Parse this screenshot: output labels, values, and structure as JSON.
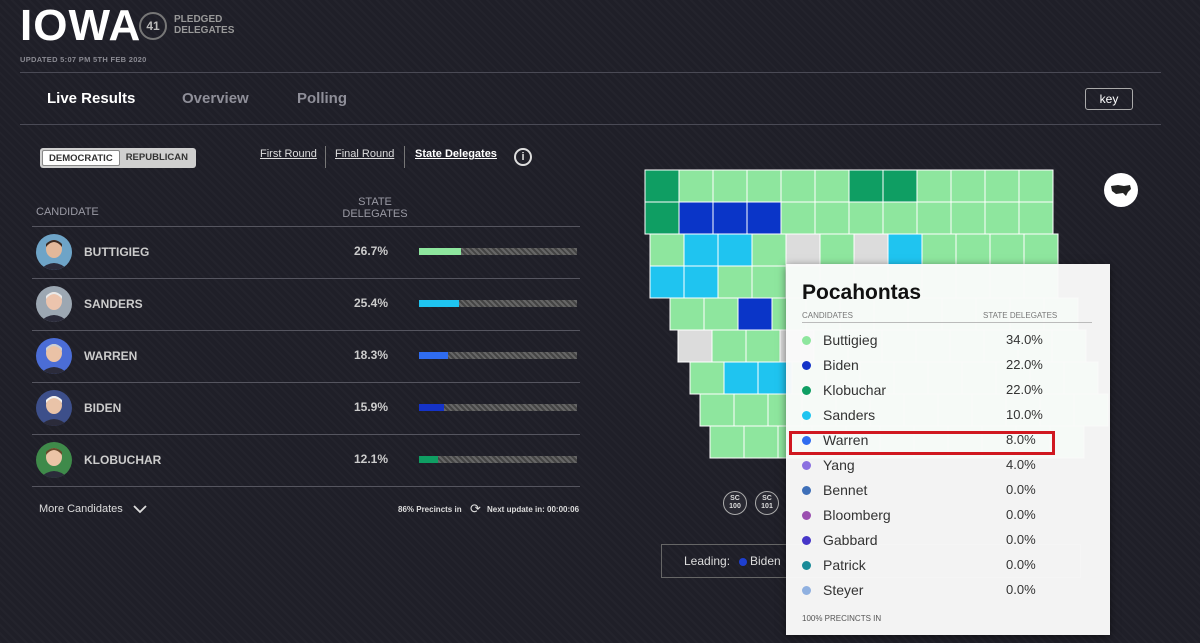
{
  "header": {
    "state": "IOWA",
    "delegates_count": "41",
    "delegates_label": "PLEDGED DELEGATES",
    "updated": "UPDATED 5:07 PM 5TH FEB 2020"
  },
  "nav": {
    "tabs": [
      "Live Results",
      "Overview",
      "Polling"
    ],
    "active": "Live Results",
    "key_label": "key"
  },
  "party_toggle": {
    "democratic": "DEMOCRATIC",
    "republican": "REPUBLICAN",
    "selected": "DEMOCRATIC"
  },
  "round_tabs": {
    "first": "First Round",
    "final": "Final Round",
    "state": "State Delegates"
  },
  "info_icon": "info-icon",
  "table": {
    "col_candidate": "CANDIDATE",
    "col_delegates": "STATE DELEGATES",
    "rows": [
      {
        "name": "BUTTIGIEG",
        "pct": "26.7%",
        "value": 0.267,
        "color": "#8ee69e",
        "avatar_bg": "#6ea4c7",
        "skin": "#e2b89a",
        "hair": "#3b2a22"
      },
      {
        "name": "SANDERS",
        "pct": "25.4%",
        "value": 0.254,
        "color": "#1fc4f0",
        "avatar_bg": "#9ca7b2",
        "skin": "#ecc4ad",
        "hair": "#e9e9e9"
      },
      {
        "name": "WARREN",
        "pct": "18.3%",
        "value": 0.183,
        "color": "#2f6cf0",
        "avatar_bg": "#4b6dd6",
        "skin": "#eac2a6",
        "hair": "#c9cfd6"
      },
      {
        "name": "BIDEN",
        "pct": "15.9%",
        "value": 0.159,
        "color": "#1533c8",
        "avatar_bg": "#3d4f8a",
        "skin": "#e9c3a8",
        "hair": "#f2f2f2"
      },
      {
        "name": "KLOBUCHAR",
        "pct": "12.1%",
        "value": 0.121,
        "color": "#0f9e63",
        "avatar_bg": "#3f8a4a",
        "skin": "#ebc4a6",
        "hair": "#6a4a2b"
      }
    ]
  },
  "footer": {
    "more": "More Candidates",
    "precincts": "86% Precincts in",
    "next_update": "Next update in: 00:00:06"
  },
  "map": {
    "us_icon": "us-map-icon",
    "badges": [
      {
        "line1": "SC",
        "line2": "100"
      },
      {
        "line1": "SC",
        "line2": "101"
      }
    ],
    "leading_label": "Leading:",
    "leading_name": "Biden",
    "colors": {
      "buttigieg": "#8ee69e",
      "biden": "#0a35c8",
      "klobuchar": "#0f9e63",
      "sanders": "#1fc4f0",
      "none": "#dcdcdc"
    }
  },
  "popup": {
    "county": "Pocahontas",
    "col_candidates": "CANDIDATES",
    "col_delegates": "STATE DELEGATES",
    "rows": [
      {
        "name": "Buttigieg",
        "pct": "34.0%",
        "color": "#8ee69e"
      },
      {
        "name": "Biden",
        "pct": "22.0%",
        "color": "#1533c8"
      },
      {
        "name": "Klobuchar",
        "pct": "22.0%",
        "color": "#0f9e63"
      },
      {
        "name": "Sanders",
        "pct": "10.0%",
        "color": "#1fc4f0"
      },
      {
        "name": "Warren",
        "pct": "8.0%",
        "color": "#2f6cf0"
      },
      {
        "name": "Yang",
        "pct": "4.0%",
        "color": "#8a6fe0"
      },
      {
        "name": "Bennet",
        "pct": "0.0%",
        "color": "#3e6fb8"
      },
      {
        "name": "Bloomberg",
        "pct": "0.0%",
        "color": "#9b4fb0"
      },
      {
        "name": "Gabbard",
        "pct": "0.0%",
        "color": "#4636c8"
      },
      {
        "name": "Patrick",
        "pct": "0.0%",
        "color": "#1a8a98"
      },
      {
        "name": "Steyer",
        "pct": "0.0%",
        "color": "#8fb0e0"
      }
    ],
    "footer": "100% PRECINCTS IN",
    "highlighted": "Warren"
  }
}
